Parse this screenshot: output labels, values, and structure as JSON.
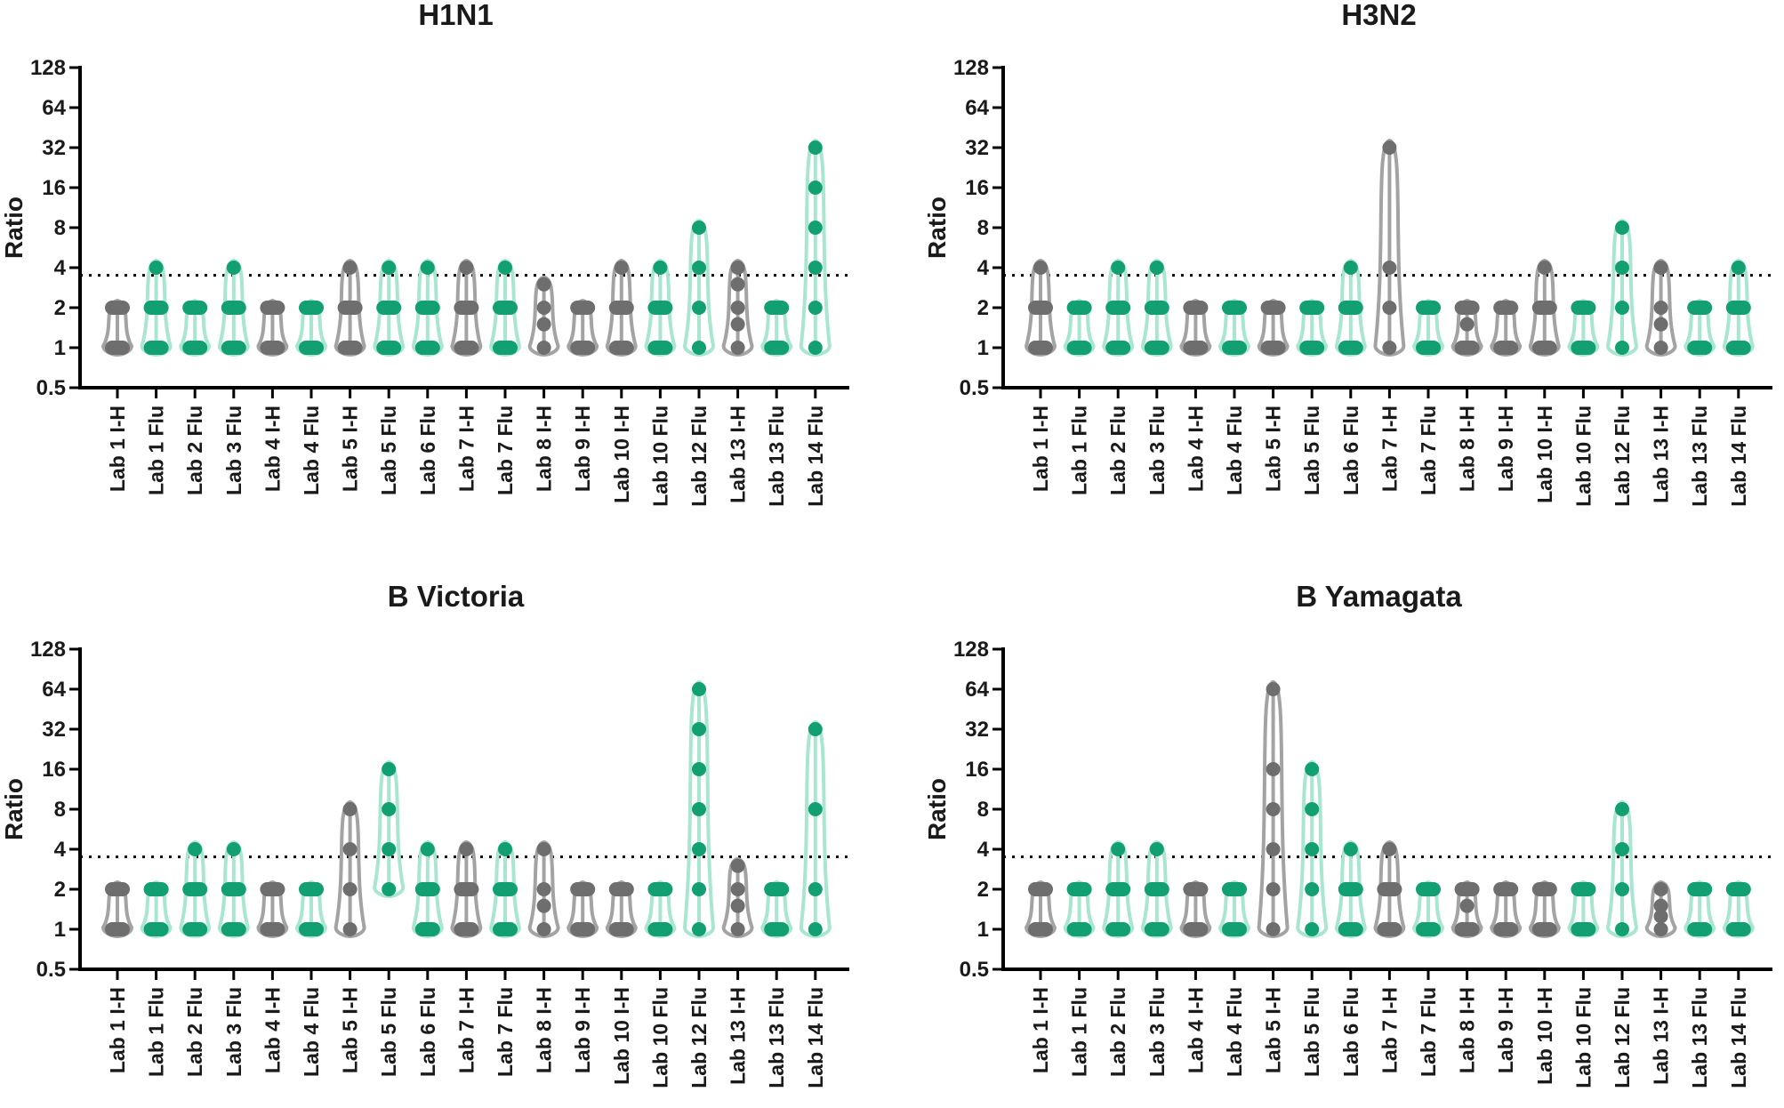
{
  "figure": {
    "colors": {
      "flu": "#12a072",
      "flu_light": "#a8e6cf",
      "ih": "#6e6e6e",
      "ih_light": "#a3a3a3"
    },
    "y_threshold": 3.5,
    "ylabel": "Ratio"
  },
  "chart_data": [
    {
      "type": "violin",
      "title": "H1N1",
      "ylabel": "Ratio",
      "yscale": "log2",
      "ylim": [
        0.5,
        128
      ],
      "yticks": [
        "0.5",
        "1",
        "2",
        "4",
        "8",
        "16",
        "32",
        "64",
        "128"
      ],
      "threshold": 3.5,
      "categories": [
        {
          "label": "Lab 1 I-H",
          "kind": "ih",
          "points": [
            1,
            2
          ]
        },
        {
          "label": "Lab 1 Flu",
          "kind": "flu",
          "points": [
            1,
            2,
            4
          ]
        },
        {
          "label": "Lab 2 Flu",
          "kind": "flu",
          "points": [
            1,
            2
          ]
        },
        {
          "label": "Lab 3 Flu",
          "kind": "flu",
          "points": [
            1,
            2,
            4
          ]
        },
        {
          "label": "Lab 4 I-H",
          "kind": "ih",
          "points": [
            1,
            2
          ]
        },
        {
          "label": "Lab 4 Flu",
          "kind": "flu",
          "points": [
            1,
            2
          ]
        },
        {
          "label": "Lab 5 I-H",
          "kind": "ih",
          "points": [
            1,
            2,
            4
          ]
        },
        {
          "label": "Lab 5 Flu",
          "kind": "flu",
          "points": [
            1,
            2,
            4
          ]
        },
        {
          "label": "Lab 6 Flu",
          "kind": "flu",
          "points": [
            1,
            2,
            4
          ]
        },
        {
          "label": "Lab 7 I-H",
          "kind": "ih",
          "points": [
            1,
            2,
            4
          ]
        },
        {
          "label": "Lab 7 Flu",
          "kind": "flu",
          "points": [
            1,
            2,
            4
          ]
        },
        {
          "label": "Lab 8 I-H",
          "kind": "ih",
          "points": [
            1,
            1.5,
            2,
            3
          ]
        },
        {
          "label": "Lab 9 I-H",
          "kind": "ih",
          "points": [
            1,
            2
          ]
        },
        {
          "label": "Lab 10 I-H",
          "kind": "ih",
          "points": [
            1,
            2,
            4
          ]
        },
        {
          "label": "Lab 10 Flu",
          "kind": "flu",
          "points": [
            1,
            2,
            4
          ]
        },
        {
          "label": "Lab 12 Flu",
          "kind": "flu",
          "points": [
            1,
            2,
            4,
            8
          ]
        },
        {
          "label": "Lab 13 I-H",
          "kind": "ih",
          "points": [
            1,
            1.5,
            2,
            3,
            4
          ]
        },
        {
          "label": "Lab 13 Flu",
          "kind": "flu",
          "points": [
            1,
            2
          ]
        },
        {
          "label": "Lab 14 Flu",
          "kind": "flu",
          "points": [
            1,
            2,
            4,
            8,
            16,
            32
          ]
        }
      ]
    },
    {
      "type": "violin",
      "title": "H3N2",
      "ylabel": "Ratio",
      "yscale": "log2",
      "ylim": [
        0.5,
        128
      ],
      "yticks": [
        "0.5",
        "1",
        "2",
        "4",
        "8",
        "16",
        "32",
        "64",
        "128"
      ],
      "threshold": 3.5,
      "categories": [
        {
          "label": "Lab 1 I-H",
          "kind": "ih",
          "points": [
            1,
            2,
            4
          ]
        },
        {
          "label": "Lab 1 Flu",
          "kind": "flu",
          "points": [
            1,
            2
          ]
        },
        {
          "label": "Lab 2 Flu",
          "kind": "flu",
          "points": [
            1,
            2,
            4
          ]
        },
        {
          "label": "Lab 3 Flu",
          "kind": "flu",
          "points": [
            1,
            2,
            4
          ]
        },
        {
          "label": "Lab 4 I-H",
          "kind": "ih",
          "points": [
            1,
            2
          ]
        },
        {
          "label": "Lab 4 Flu",
          "kind": "flu",
          "points": [
            1,
            2
          ]
        },
        {
          "label": "Lab 5 I-H",
          "kind": "ih",
          "points": [
            1,
            2
          ]
        },
        {
          "label": "Lab 5 Flu",
          "kind": "flu",
          "points": [
            1,
            2
          ]
        },
        {
          "label": "Lab 6 Flu",
          "kind": "flu",
          "points": [
            1,
            2,
            4
          ]
        },
        {
          "label": "Lab 7 I-H",
          "kind": "ih",
          "points": [
            1,
            2,
            4,
            32
          ]
        },
        {
          "label": "Lab 7 Flu",
          "kind": "flu",
          "points": [
            1,
            2
          ]
        },
        {
          "label": "Lab 8 I-H",
          "kind": "ih",
          "points": [
            1,
            1.5,
            2
          ]
        },
        {
          "label": "Lab 9 I-H",
          "kind": "ih",
          "points": [
            1,
            2
          ]
        },
        {
          "label": "Lab 10 I-H",
          "kind": "ih",
          "points": [
            1,
            2,
            4
          ]
        },
        {
          "label": "Lab 10 Flu",
          "kind": "flu",
          "points": [
            1,
            2
          ]
        },
        {
          "label": "Lab 12 Flu",
          "kind": "flu",
          "points": [
            1,
            2,
            4,
            8
          ]
        },
        {
          "label": "Lab 13 I-H",
          "kind": "ih",
          "points": [
            1,
            1.5,
            2,
            4
          ]
        },
        {
          "label": "Lab 13 Flu",
          "kind": "flu",
          "points": [
            1,
            2
          ]
        },
        {
          "label": "Lab 14 Flu",
          "kind": "flu",
          "points": [
            1,
            2,
            4
          ]
        }
      ]
    },
    {
      "type": "violin",
      "title": "B Victoria",
      "ylabel": "Ratio",
      "yscale": "log2",
      "ylim": [
        0.5,
        128
      ],
      "yticks": [
        "0.5",
        "1",
        "2",
        "4",
        "8",
        "16",
        "32",
        "64",
        "128"
      ],
      "threshold": 3.5,
      "categories": [
        {
          "label": "Lab 1 I-H",
          "kind": "ih",
          "points": [
            1,
            2
          ]
        },
        {
          "label": "Lab 1 Flu",
          "kind": "flu",
          "points": [
            1,
            2
          ]
        },
        {
          "label": "Lab 2 Flu",
          "kind": "flu",
          "points": [
            1,
            2,
            4
          ]
        },
        {
          "label": "Lab 3 Flu",
          "kind": "flu",
          "points": [
            1,
            2,
            4
          ]
        },
        {
          "label": "Lab 4 I-H",
          "kind": "ih",
          "points": [
            1,
            2
          ]
        },
        {
          "label": "Lab 4 Flu",
          "kind": "flu",
          "points": [
            1,
            2
          ]
        },
        {
          "label": "Lab 5 I-H",
          "kind": "ih",
          "points": [
            1,
            2,
            4,
            8
          ]
        },
        {
          "label": "Lab 5 Flu",
          "kind": "flu",
          "points": [
            2,
            4,
            8,
            16
          ]
        },
        {
          "label": "Lab 6 Flu",
          "kind": "flu",
          "points": [
            1,
            2,
            4
          ]
        },
        {
          "label": "Lab 7 I-H",
          "kind": "ih",
          "points": [
            1,
            2,
            4
          ]
        },
        {
          "label": "Lab 7 Flu",
          "kind": "flu",
          "points": [
            1,
            2,
            4
          ]
        },
        {
          "label": "Lab 8 I-H",
          "kind": "ih",
          "points": [
            1,
            1.5,
            2,
            4
          ]
        },
        {
          "label": "Lab 9 I-H",
          "kind": "ih",
          "points": [
            1,
            2
          ]
        },
        {
          "label": "Lab 10 I-H",
          "kind": "ih",
          "points": [
            1,
            2
          ]
        },
        {
          "label": "Lab 10 Flu",
          "kind": "flu",
          "points": [
            1,
            2
          ]
        },
        {
          "label": "Lab 12 Flu",
          "kind": "flu",
          "points": [
            1,
            2,
            4,
            8,
            16,
            32,
            64
          ]
        },
        {
          "label": "Lab 13 I-H",
          "kind": "ih",
          "points": [
            1,
            1.5,
            2,
            3
          ]
        },
        {
          "label": "Lab 13 Flu",
          "kind": "flu",
          "points": [
            1,
            2
          ]
        },
        {
          "label": "Lab 14 Flu",
          "kind": "flu",
          "points": [
            1,
            2,
            8,
            32
          ]
        }
      ]
    },
    {
      "type": "violin",
      "title": "B Yamagata",
      "ylabel": "Ratio",
      "yscale": "log2",
      "ylim": [
        0.5,
        128
      ],
      "yticks": [
        "0.5",
        "1",
        "2",
        "4",
        "8",
        "16",
        "32",
        "64",
        "128"
      ],
      "threshold": 3.5,
      "categories": [
        {
          "label": "Lab 1 I-H",
          "kind": "ih",
          "points": [
            1,
            2
          ]
        },
        {
          "label": "Lab 1 Flu",
          "kind": "flu",
          "points": [
            1,
            2
          ]
        },
        {
          "label": "Lab 2 Flu",
          "kind": "flu",
          "points": [
            1,
            2,
            4
          ]
        },
        {
          "label": "Lab 3 Flu",
          "kind": "flu",
          "points": [
            1,
            2,
            4
          ]
        },
        {
          "label": "Lab 4 I-H",
          "kind": "ih",
          "points": [
            1,
            2
          ]
        },
        {
          "label": "Lab 4 Flu",
          "kind": "flu",
          "points": [
            1,
            2
          ]
        },
        {
          "label": "Lab 5 I-H",
          "kind": "ih",
          "points": [
            1,
            2,
            4,
            8,
            16,
            64
          ]
        },
        {
          "label": "Lab 5 Flu",
          "kind": "flu",
          "points": [
            1,
            2,
            4,
            8,
            16
          ]
        },
        {
          "label": "Lab 6 Flu",
          "kind": "flu",
          "points": [
            1,
            2,
            4
          ]
        },
        {
          "label": "Lab 7 I-H",
          "kind": "ih",
          "points": [
            1,
            2,
            4
          ]
        },
        {
          "label": "Lab 7 Flu",
          "kind": "flu",
          "points": [
            1,
            2
          ]
        },
        {
          "label": "Lab 8 I-H",
          "kind": "ih",
          "points": [
            1,
            1.5,
            2
          ]
        },
        {
          "label": "Lab 9 I-H",
          "kind": "ih",
          "points": [
            1,
            2
          ]
        },
        {
          "label": "Lab 10 I-H",
          "kind": "ih",
          "points": [
            1,
            2
          ]
        },
        {
          "label": "Lab 10 Flu",
          "kind": "flu",
          "points": [
            1,
            2
          ]
        },
        {
          "label": "Lab 12 Flu",
          "kind": "flu",
          "points": [
            1,
            2,
            4,
            8
          ]
        },
        {
          "label": "Lab 13 I-H",
          "kind": "ih",
          "points": [
            1,
            1.25,
            1.5,
            2
          ]
        },
        {
          "label": "Lab 13 Flu",
          "kind": "flu",
          "points": [
            1,
            2
          ]
        },
        {
          "label": "Lab 14 Flu",
          "kind": "flu",
          "points": [
            1,
            2
          ]
        }
      ]
    }
  ]
}
